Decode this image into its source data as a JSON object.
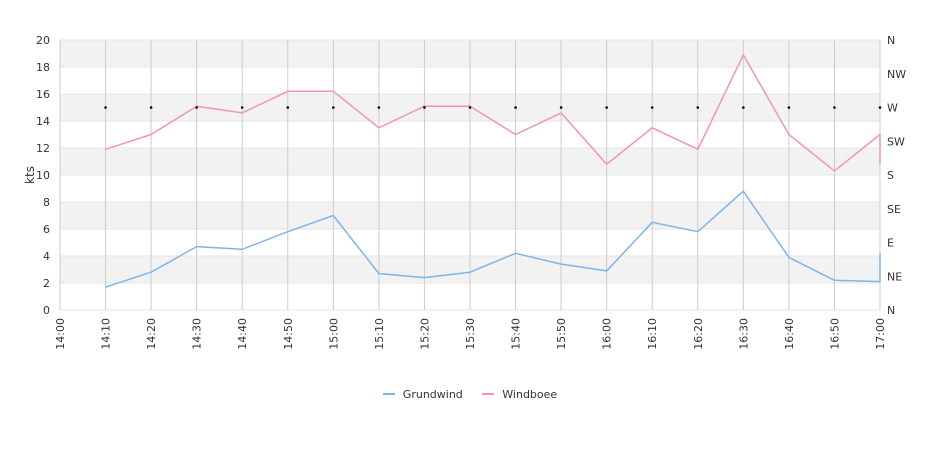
{
  "chart_data": {
    "type": "line",
    "ylabel": "kts",
    "ylim": [
      0,
      20
    ],
    "y_ticks": [
      "0",
      "2",
      "4",
      "6",
      "8",
      "10",
      "12",
      "14",
      "16",
      "18",
      "20"
    ],
    "x_ticks": [
      "14:00",
      "14:10",
      "14:20",
      "14:30",
      "14:40",
      "14:50",
      "15:00",
      "15:10",
      "15:20",
      "15:30",
      "15:40",
      "15:50",
      "16:00",
      "16:10",
      "16:20",
      "16:30",
      "16:40",
      "16:50",
      "17:00"
    ],
    "x_range_minutes": [
      0,
      180
    ],
    "right_axis": {
      "labels": [
        "N",
        "NE",
        "E",
        "SE",
        "S",
        "SW",
        "W",
        "NW",
        "N"
      ],
      "range_degrees": [
        0,
        360
      ]
    },
    "series": [
      {
        "name": "Grundwind",
        "color": "#7cb5ec",
        "x": [
          10,
          20,
          30,
          40,
          50,
          60,
          70,
          80,
          90,
          100,
          110,
          120,
          130,
          140,
          150,
          160,
          170,
          180,
          180
        ],
        "values": [
          1.7,
          2.8,
          4.7,
          4.5,
          5.8,
          7.0,
          2.7,
          2.4,
          2.8,
          4.2,
          3.4,
          2.9,
          6.5,
          5.8,
          8.8,
          3.9,
          2.2,
          2.1,
          4.2
        ]
      },
      {
        "name": "Windboee",
        "color": "#f192c1",
        "x": [
          10,
          20,
          30,
          40,
          50,
          60,
          70,
          80,
          90,
          100,
          110,
          120,
          130,
          140,
          150,
          160,
          170,
          180,
          180
        ],
        "values": [
          11.9,
          13.0,
          15.1,
          14.6,
          16.2,
          16.2,
          13.5,
          15.1,
          15.1,
          13.0,
          14.6,
          10.8,
          13.5,
          11.9,
          18.9,
          13.0,
          10.3,
          13.0,
          10.8
        ]
      },
      {
        "name": "",
        "type": "scatter",
        "axis": "right",
        "x": [
          10,
          20,
          30,
          40,
          50,
          60,
          70,
          80,
          90,
          100,
          110,
          120,
          130,
          140,
          150,
          160,
          170,
          180
        ],
        "values_degrees": [
          270,
          270,
          270,
          270,
          270,
          270,
          270,
          270,
          270,
          270,
          270,
          270,
          270,
          270,
          270,
          270,
          270,
          270
        ]
      }
    ],
    "grid": true,
    "legend": "bottom-center"
  },
  "legend": {
    "items": [
      {
        "label": "Grundwind",
        "color": "#7cb5ec"
      },
      {
        "label": "Windboee",
        "color": "#f192c1"
      }
    ]
  }
}
